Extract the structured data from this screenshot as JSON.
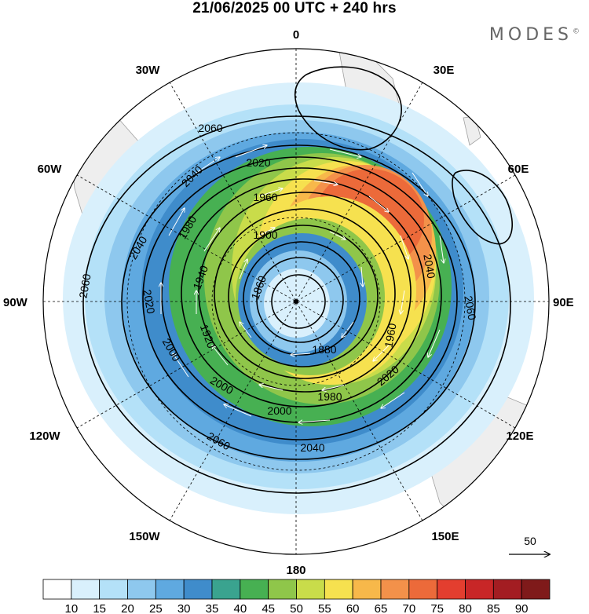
{
  "title": "21/06/2025  00 UTC  + 240 hrs",
  "brand": "MODES",
  "brand_mark": "©",
  "longitude_labels": [
    "0",
    "30E",
    "60E",
    "90E",
    "120E",
    "150E",
    "180",
    "150W",
    "120W",
    "90W",
    "60W",
    "30W"
  ],
  "contour_labels": [
    "2060",
    "2040",
    "2020",
    "1960",
    "1900",
    "1860",
    "1880",
    "1920",
    "1940",
    "1980",
    "2000",
    "2020",
    "2040",
    "2060",
    "1980",
    "1960",
    "2020",
    "2040",
    "2060",
    "2000",
    "2000",
    "2020",
    "2040",
    "2060"
  ],
  "vector_reference": {
    "label": "50"
  },
  "colorbar": {
    "levels": [
      "10",
      "15",
      "20",
      "25",
      "30",
      "35",
      "40",
      "45",
      "50",
      "55",
      "60",
      "65",
      "70",
      "75",
      "80",
      "85",
      "90"
    ],
    "colors": [
      "#ffffff",
      "#d9f0fc",
      "#b4e1f8",
      "#8ec8ee",
      "#5fa9e0",
      "#3f8ccb",
      "#3aa38f",
      "#47b052",
      "#8fc64a",
      "#c9dc4a",
      "#f6e14f",
      "#f7b84a",
      "#f3914a",
      "#ec6a3a",
      "#e33e2f",
      "#c82627",
      "#a31d22",
      "#7f1a1a"
    ]
  }
}
